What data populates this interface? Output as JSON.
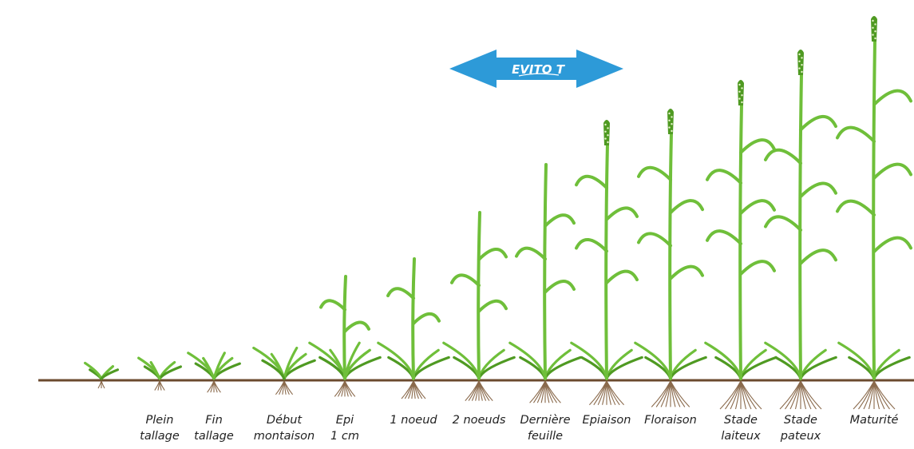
{
  "badge": {
    "label": "EVITO T",
    "color": "#2d9ad8"
  },
  "colors": {
    "leaf": "#6fbf3a",
    "leaf_dark": "#4f9a22",
    "soil": "#6b4a2e",
    "root": "#8a6a4c",
    "label": "#222222"
  },
  "stages": [
    {
      "id": "s1",
      "lines": []
    },
    {
      "id": "s2",
      "lines": [
        "Plein",
        "tallage"
      ]
    },
    {
      "id": "s3",
      "lines": [
        "Fin",
        "tallage"
      ]
    },
    {
      "id": "s4",
      "lines": [
        "Début",
        "montaison"
      ]
    },
    {
      "id": "s5",
      "lines": [
        "Epi",
        "1 cm"
      ]
    },
    {
      "id": "s6",
      "lines": [
        "1 noeud"
      ]
    },
    {
      "id": "s7",
      "lines": [
        "2 noeuds"
      ]
    },
    {
      "id": "s8",
      "lines": [
        "Dernière",
        "feuille"
      ]
    },
    {
      "id": "s9",
      "lines": [
        "Epiaison"
      ]
    },
    {
      "id": "s10",
      "lines": [
        "Floraison"
      ]
    },
    {
      "id": "s11",
      "lines": [
        "Stade",
        "laiteux"
      ]
    },
    {
      "id": "s12",
      "lines": [
        "Stade",
        "pateux"
      ]
    },
    {
      "id": "s13",
      "lines": [
        "Maturité"
      ]
    }
  ]
}
